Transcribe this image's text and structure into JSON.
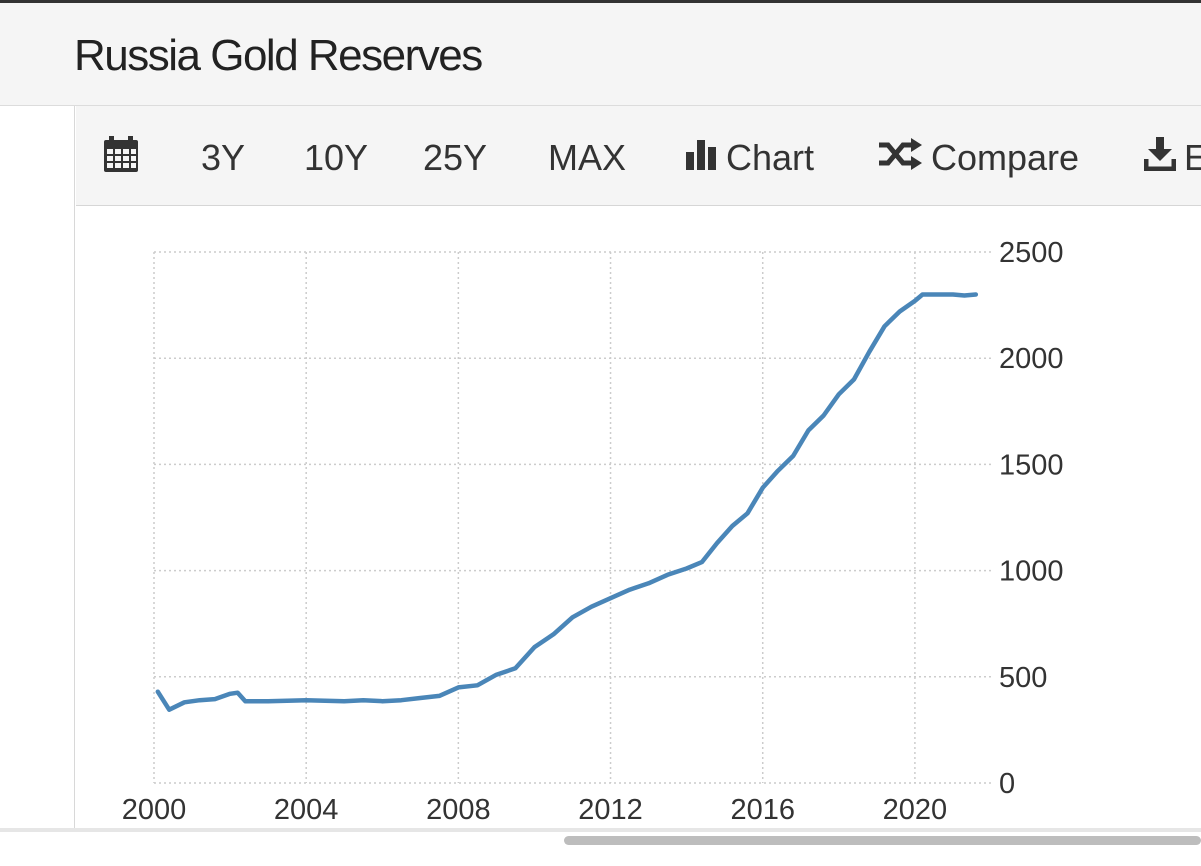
{
  "page": {
    "title": "Russia Gold Reserves"
  },
  "toolbar": {
    "calendar_icon": "calendar-icon",
    "range_3y": "3Y",
    "range_10y": "10Y",
    "range_25y": "25Y",
    "range_max": "MAX",
    "chart_label": "Chart",
    "compare_label": "Compare",
    "export_label": "E",
    "chart_icon": "bar-chart-icon",
    "compare_icon": "shuffle-icon",
    "export_icon": "download-icon"
  },
  "colors": {
    "line": "#4a86b8",
    "grid": "#cccccc",
    "text": "#333333",
    "toolbar_bg": "#f5f5f5"
  },
  "chart_data": {
    "type": "line",
    "title": "",
    "xlabel": "",
    "ylabel": "",
    "xlim": [
      2000,
      2022
    ],
    "ylim": [
      0,
      2500
    ],
    "x_ticks": [
      2000,
      2004,
      2008,
      2012,
      2016,
      2020
    ],
    "y_ticks": [
      0,
      500,
      1000,
      1500,
      2000,
      2500
    ],
    "y_axis_position": "right",
    "grid": true,
    "grid_style": "dotted",
    "series": [
      {
        "name": "",
        "x": [
          2000.1,
          2000.4,
          2000.8,
          2001.2,
          2001.6,
          2002.0,
          2002.2,
          2002.4,
          2003.0,
          2004.0,
          2005.0,
          2005.5,
          2006.0,
          2006.5,
          2007.0,
          2007.5,
          2008.0,
          2008.5,
          2009.0,
          2009.5,
          2010.0,
          2010.5,
          2011.0,
          2011.5,
          2012.0,
          2012.5,
          2013.0,
          2013.5,
          2014.0,
          2014.4,
          2014.8,
          2015.2,
          2015.6,
          2016.0,
          2016.4,
          2016.8,
          2017.2,
          2017.6,
          2018.0,
          2018.4,
          2018.8,
          2019.2,
          2019.6,
          2020.0,
          2020.2,
          2020.6,
          2021.0,
          2021.3,
          2021.6
        ],
        "y": [
          430,
          345,
          380,
          390,
          395,
          420,
          425,
          385,
          385,
          390,
          385,
          390,
          385,
          390,
          400,
          410,
          450,
          460,
          510,
          540,
          640,
          700,
          780,
          830,
          870,
          910,
          940,
          980,
          1010,
          1040,
          1130,
          1210,
          1270,
          1390,
          1470,
          1540,
          1660,
          1730,
          1830,
          1900,
          2030,
          2150,
          2220,
          2270,
          2300,
          2300,
          2300,
          2295,
          2300
        ]
      }
    ]
  }
}
